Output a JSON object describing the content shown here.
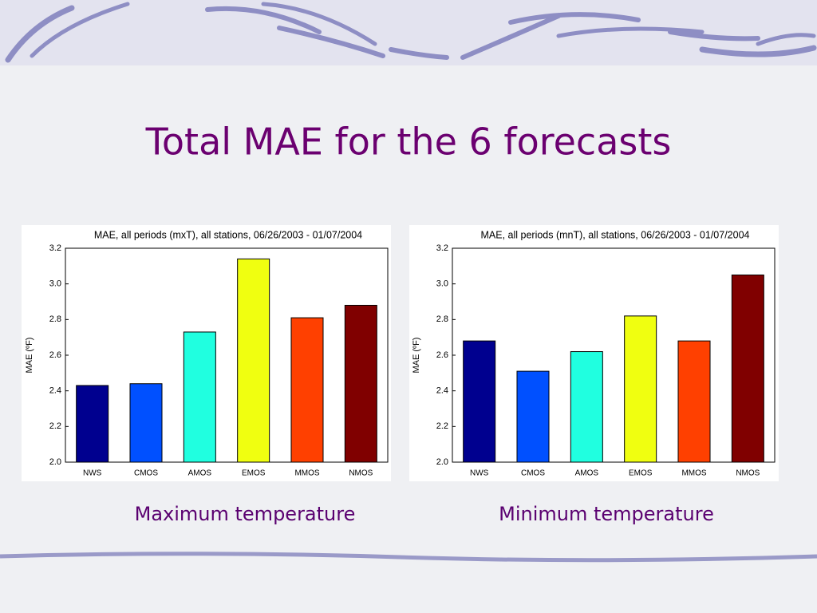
{
  "slide": {
    "title": "Total MAE for the 6 forecasts",
    "captions": [
      "Maximum temperature",
      "Minimum temperature"
    ]
  },
  "chart_data": [
    {
      "type": "bar",
      "title": "MAE, all periods (mxT), all stations, 06/26/2003 - 01/07/2004",
      "y_label": "MAE (ºF)",
      "categories": [
        "NWS",
        "CMOS",
        "AMOS",
        "EMOS",
        "MMOS",
        "NMOS"
      ],
      "values": [
        2.43,
        2.44,
        2.73,
        3.14,
        2.81,
        2.88
      ],
      "colors": [
        "#00008f",
        "#0050ff",
        "#20ffe0",
        "#f0ff10",
        "#ff4000",
        "#800000"
      ],
      "ylim": [
        2.0,
        3.2
      ],
      "yticks": [
        {
          "value": 2.0,
          "label": "2.0"
        },
        2.2,
        2.4,
        2.6,
        2.8,
        {
          "value": 3.0,
          "label": "3.0"
        },
        3.2
      ]
    },
    {
      "type": "bar",
      "title": "MAE, all periods (mnT), all stations, 06/26/2003 - 01/07/2004",
      "y_label": "MAE (ºF)",
      "categories": [
        "NWS",
        "CMOS",
        "AMOS",
        "EMOS",
        "MMOS",
        "NMOS"
      ],
      "values": [
        2.68,
        2.51,
        2.62,
        2.82,
        2.68,
        3.05
      ],
      "colors": [
        "#00008f",
        "#0050ff",
        "#20ffe0",
        "#f0ff10",
        "#ff4000",
        "#800000"
      ],
      "ylim": [
        2.0,
        3.2
      ],
      "yticks": [
        {
          "value": 2.0,
          "label": "2.0"
        },
        2.2,
        2.4,
        2.6,
        2.8,
        {
          "value": 3.0,
          "label": "3.0"
        },
        3.2
      ]
    }
  ]
}
